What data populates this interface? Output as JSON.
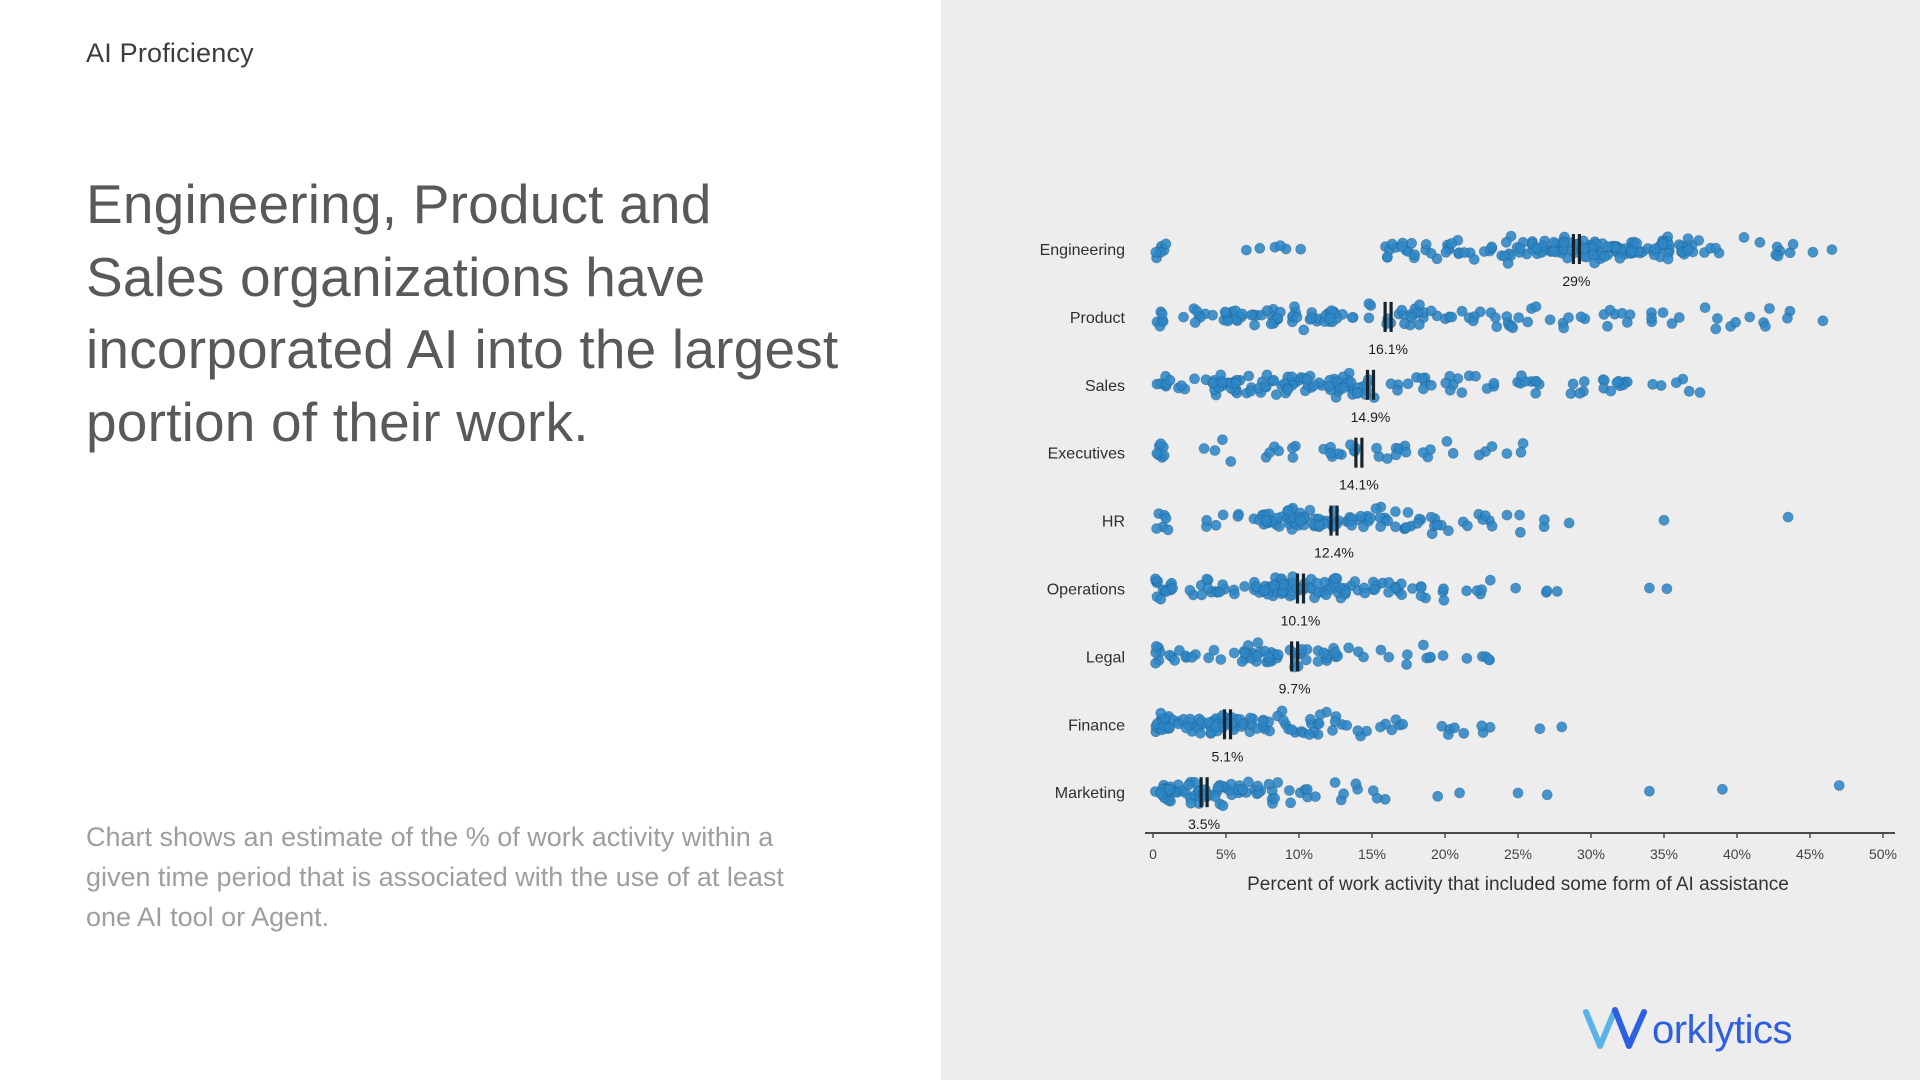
{
  "page": {
    "eyebrow": "AI Proficiency",
    "headline": "Engineering, Product and Sales organizations have incorporated AI into the largest portion of their work.",
    "footnote": "Chart shows an estimate of the % of work activity within a given time period that is associated with the use of at least one AI tool or Agent.",
    "brand": {
      "wordmark_rest": "orklytics",
      "color": "#2d5fe3",
      "w_light": "#5ab2e8",
      "w_dark": "#2d5fe3"
    }
  },
  "chart_data": {
    "type": "scatter",
    "variant": "beeswarm-strip-plot",
    "title": "",
    "xlabel": "Percent of work activity that included some form of AI assistance",
    "ylabel": "",
    "xlim": [
      0,
      50
    ],
    "grid": false,
    "legend": "none",
    "x_tick_values": [
      0,
      5,
      10,
      15,
      20,
      25,
      30,
      35,
      40,
      45,
      50
    ],
    "x_tick_labels": [
      "0",
      "5%",
      "10%",
      "15%",
      "20%",
      "25%",
      "30%",
      "35%",
      "40%",
      "45%",
      "50%"
    ],
    "colors": {
      "dot": "#2e86c5",
      "dot_stroke": "#1d5f94",
      "median_marker": "#16242e",
      "axis": "#4a4a4a",
      "category_text": "#2f2f2f",
      "tick_text": "#444444",
      "median_text": "#1c1c1c",
      "panel_bg": "#ededed"
    },
    "categories": [
      "Engineering",
      "Product",
      "Sales",
      "Executives",
      "HR",
      "Operations",
      "Legal",
      "Finance",
      "Marketing"
    ],
    "medians": [
      29,
      16.1,
      14.9,
      14.1,
      12.4,
      10.1,
      9.7,
      5.1,
      3.5
    ],
    "median_labels": [
      "29%",
      "16.1%",
      "14.9%",
      "14.1%",
      "12.4%",
      "10.1%",
      "9.7%",
      "5.1%",
      "3.5%"
    ],
    "distributions": [
      {
        "category": "Engineering",
        "median": 29,
        "median_label": "29%",
        "seed": 1,
        "clusters": [
          [
            0.5,
            0.5,
            7
          ],
          [
            7.5,
            0.8,
            3
          ],
          [
            9.5,
            0.8,
            3
          ],
          [
            17.5,
            1.5,
            14
          ],
          [
            20.5,
            1.5,
            14
          ],
          [
            27,
            3,
            55
          ],
          [
            32,
            3,
            55
          ],
          [
            37,
            2.5,
            20
          ],
          [
            43,
            1.5,
            8
          ]
        ],
        "outliers": [
          46.5
        ]
      },
      {
        "category": "Product",
        "median": 16.1,
        "median_label": "16.1%",
        "seed": 2,
        "clusters": [
          [
            0.5,
            0.5,
            6
          ],
          [
            5,
            1.5,
            20
          ],
          [
            8.5,
            1.5,
            22
          ],
          [
            12,
            1.5,
            18
          ],
          [
            16,
            1.5,
            14
          ],
          [
            20,
            2,
            16
          ],
          [
            24,
            1.5,
            8
          ],
          [
            28,
            2,
            10
          ],
          [
            32,
            1.5,
            8
          ],
          [
            36,
            1.5,
            5
          ],
          [
            40,
            1.5,
            8
          ],
          [
            43.5,
            1,
            4
          ]
        ],
        "outliers": []
      },
      {
        "category": "Sales",
        "median": 14.9,
        "median_label": "14.9%",
        "seed": 3,
        "clusters": [
          [
            0.8,
            0.6,
            8
          ],
          [
            5,
            1.5,
            25
          ],
          [
            8.5,
            1.5,
            30
          ],
          [
            12,
            1.5,
            22
          ],
          [
            16,
            2,
            18
          ],
          [
            20,
            1.5,
            10
          ],
          [
            23.5,
            1.5,
            8
          ],
          [
            27,
            1.5,
            6
          ],
          [
            30,
            1.2,
            8
          ],
          [
            33.5,
            1.2,
            8
          ],
          [
            36.5,
            0.8,
            4
          ]
        ],
        "outliers": []
      },
      {
        "category": "Executives",
        "median": 14.1,
        "median_label": "14.1%",
        "seed": 4,
        "clusters": [
          [
            0.6,
            0.5,
            7
          ],
          [
            4.5,
            0.8,
            4
          ],
          [
            8.5,
            1,
            6
          ],
          [
            11.5,
            1,
            6
          ],
          [
            14,
            1,
            7
          ],
          [
            16.5,
            1,
            6
          ],
          [
            19.5,
            1,
            5
          ],
          [
            22.5,
            0.8,
            3
          ],
          [
            25.5,
            0.8,
            3
          ]
        ],
        "outliers": []
      },
      {
        "category": "HR",
        "median": 12.4,
        "median_label": "12.4%",
        "seed": 5,
        "clusters": [
          [
            0.6,
            0.5,
            6
          ],
          [
            5,
            1,
            6
          ],
          [
            9,
            1.5,
            30
          ],
          [
            12,
            1.5,
            30
          ],
          [
            15.5,
            1.5,
            20
          ],
          [
            19,
            1.5,
            12
          ],
          [
            22.5,
            1,
            6
          ],
          [
            25.5,
            1,
            5
          ]
        ],
        "outliers": [
          28.5,
          35,
          43.5
        ]
      },
      {
        "category": "Operations",
        "median": 10.1,
        "median_label": "10.1%",
        "seed": 6,
        "clusters": [
          [
            0.8,
            0.7,
            14
          ],
          [
            4.5,
            1.2,
            14
          ],
          [
            8,
            1.5,
            30
          ],
          [
            11,
            1.5,
            32
          ],
          [
            14.5,
            1.5,
            20
          ],
          [
            18,
            1.2,
            10
          ],
          [
            21,
            1,
            6
          ],
          [
            24,
            0.8,
            3
          ],
          [
            27,
            0.6,
            3
          ]
        ],
        "outliers": [
          34,
          35.2
        ]
      },
      {
        "category": "Legal",
        "median": 9.7,
        "median_label": "9.7%",
        "seed": 7,
        "clusters": [
          [
            0.7,
            0.6,
            9
          ],
          [
            3.5,
            0.8,
            8
          ],
          [
            6.5,
            1,
            14
          ],
          [
            9,
            1,
            16
          ],
          [
            11.5,
            1,
            10
          ],
          [
            14,
            1,
            6
          ],
          [
            17,
            1,
            5
          ],
          [
            20,
            1,
            5
          ],
          [
            22.5,
            0.6,
            3
          ]
        ],
        "outliers": [
          23
        ]
      },
      {
        "category": "Finance",
        "median": 5.1,
        "median_label": "5.1%",
        "seed": 8,
        "clusters": [
          [
            0.8,
            0.7,
            22
          ],
          [
            3,
            1,
            26
          ],
          [
            5.5,
            1.2,
            24
          ],
          [
            8.5,
            1.2,
            16
          ],
          [
            11.5,
            1,
            10
          ],
          [
            14.5,
            1,
            7
          ],
          [
            17.5,
            1,
            6
          ],
          [
            20.5,
            0.8,
            4
          ],
          [
            23,
            0.6,
            3
          ]
        ],
        "outliers": [
          26.5,
          28
        ]
      },
      {
        "category": "Marketing",
        "median": 3.5,
        "median_label": "3.5%",
        "seed": 9,
        "clusters": [
          [
            0.8,
            0.7,
            20
          ],
          [
            2.8,
            0.9,
            22
          ],
          [
            5,
            1,
            14
          ],
          [
            7.5,
            1,
            12
          ],
          [
            10,
            1,
            8
          ],
          [
            12.5,
            0.8,
            5
          ],
          [
            15,
            0.8,
            4
          ]
        ],
        "outliers": [
          19.5,
          21,
          25,
          27,
          34,
          39,
          47
        ]
      }
    ]
  }
}
